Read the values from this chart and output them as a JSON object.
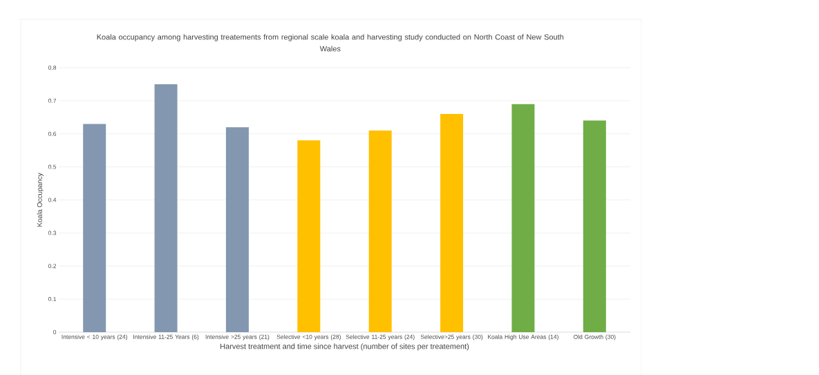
{
  "chart_data": {
    "type": "bar",
    "title": "Koala occupancy among harvesting treatements from regional scale koala and harvesting study conducted on North Coast of New South Wales",
    "xlabel": "Harvest treatment and time since harvest (number of sites per treatement)",
    "ylabel": "Koala Occupancy",
    "categories": [
      "Intensive < 10 years (24)",
      "Intensive 11-25 Years (6)",
      "Intensive >25 years (21)",
      "Selective <10 years (28)",
      "Selective 11-25 years (24)",
      "Selective>25 years (30)",
      "Koala High Use Areas (14)",
      "Old Growth (30)"
    ],
    "values": [
      0.63,
      0.75,
      0.62,
      0.58,
      0.61,
      0.66,
      0.69,
      0.64
    ],
    "colors": [
      "#8497b0",
      "#8497b0",
      "#8497b0",
      "#ffc000",
      "#ffc000",
      "#ffc000",
      "#70ad47",
      "#70ad47"
    ],
    "ylim": [
      0,
      0.8
    ],
    "yticks": [
      0,
      0.1,
      0.2,
      0.3,
      0.4,
      0.5,
      0.6,
      0.7,
      0.8
    ],
    "grid": "y"
  }
}
